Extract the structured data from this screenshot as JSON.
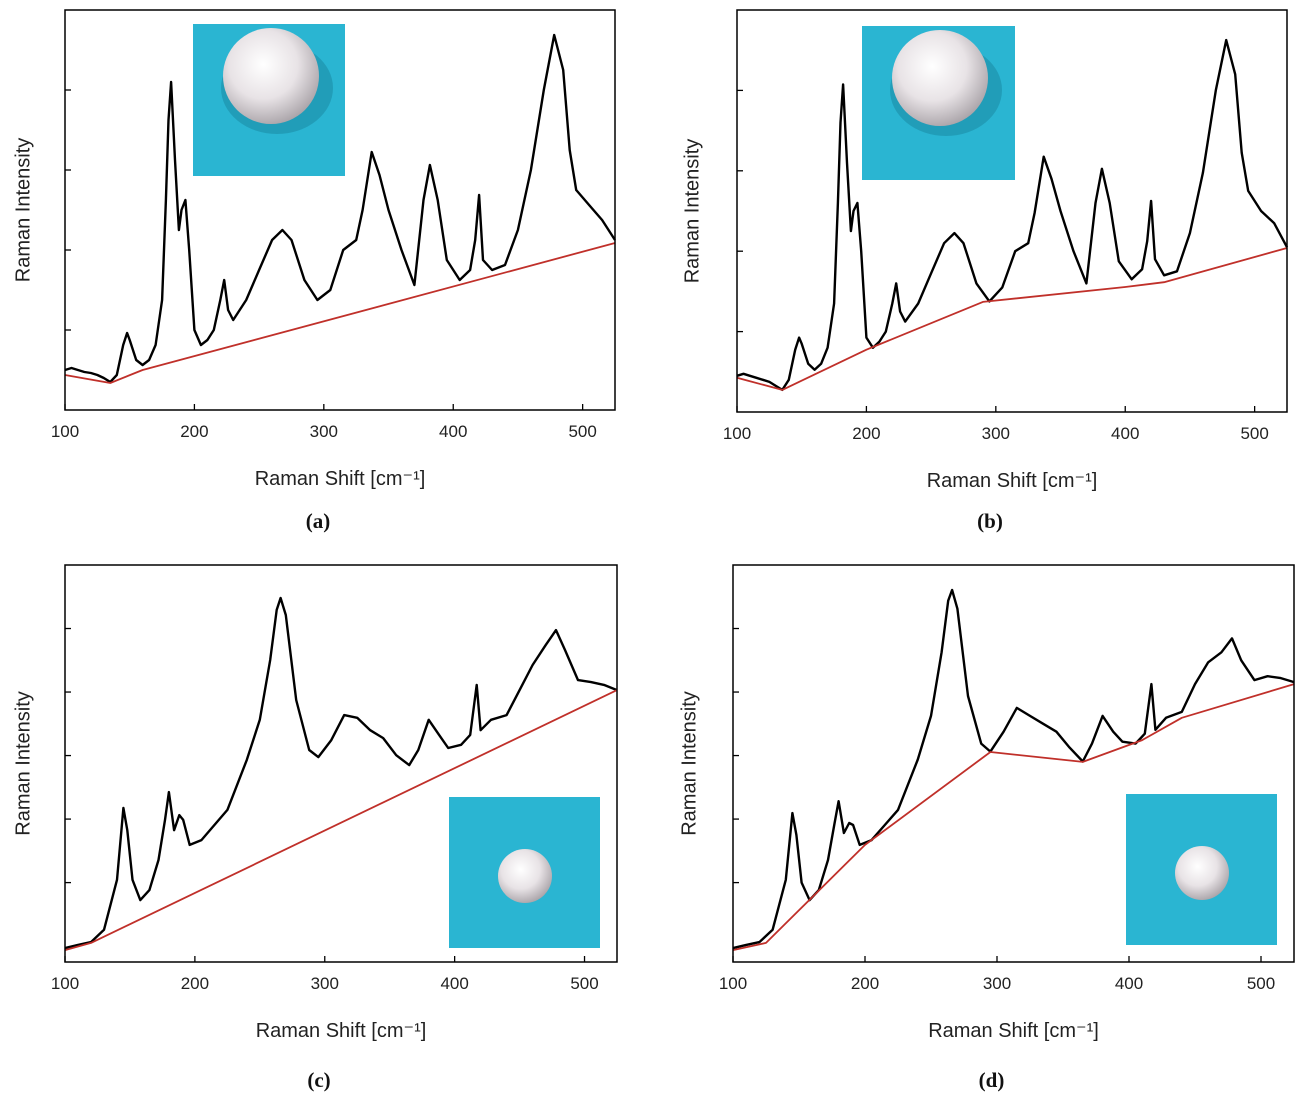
{
  "chart_data": [
    {
      "type": "line",
      "caption": "(a)",
      "xlabel": "Raman Shift [cm⁻¹]",
      "ylabel": "Raman Intensity",
      "xlim": [
        100,
        525
      ],
      "xticks": [
        100,
        200,
        300,
        400,
        500
      ],
      "ylim": [
        0,
        100
      ],
      "yticks": [
        20,
        40,
        60,
        80
      ],
      "series": [
        {
          "color": "#000000",
          "x": [
            100,
            105,
            110,
            115,
            120,
            125,
            130,
            135,
            140,
            145,
            148,
            150,
            155,
            160,
            165,
            170,
            175,
            178,
            180,
            182,
            185,
            188,
            190,
            193,
            196,
            200,
            205,
            210,
            215,
            220,
            223,
            226,
            230,
            240,
            250,
            260,
            268,
            275,
            285,
            295,
            305,
            315,
            325,
            330,
            337,
            343,
            350,
            360,
            370,
            377,
            382,
            388,
            395,
            405,
            413,
            417,
            420,
            423,
            430,
            440,
            450,
            460,
            470,
            478,
            485,
            490,
            495,
            505,
            515,
            525
          ],
          "values": [
            10,
            10.5,
            10,
            9.5,
            9.25,
            8.75,
            8,
            7,
            8.75,
            16.25,
            19.25,
            17.5,
            12.5,
            11.25,
            12.5,
            16.25,
            27.5,
            52.5,
            72.5,
            82,
            62.5,
            45,
            50,
            52.5,
            40,
            20,
            16.25,
            17.5,
            20,
            27.5,
            32.5,
            25,
            22.5,
            27.5,
            35,
            42.5,
            45,
            42.5,
            32.5,
            27.5,
            30,
            40,
            42.5,
            50,
            64.5,
            58.75,
            50,
            40,
            31.25,
            52.5,
            61.25,
            52.5,
            37.5,
            32.5,
            35,
            42.5,
            53.75,
            37.5,
            35,
            36.25,
            45,
            60,
            80,
            93.75,
            85,
            65,
            55,
            51.25,
            47.5,
            42.5
          ]
        },
        {
          "color": "#c0302a",
          "x": [
            100,
            135,
            160,
            525
          ],
          "values": [
            8.75,
            6.75,
            10,
            41.75
          ]
        }
      ]
    },
    {
      "type": "line",
      "caption": "(b)",
      "xlabel": "Raman Shift [cm⁻¹]",
      "ylabel": "Raman Intensity",
      "xlim": [
        100,
        525
      ],
      "xticks": [
        100,
        200,
        300,
        400,
        500
      ],
      "ylim": [
        0,
        100
      ],
      "yticks": [
        20,
        40,
        60,
        80
      ],
      "series": [
        {
          "color": "#000000",
          "x": [
            100,
            105,
            110,
            115,
            120,
            125,
            130,
            135,
            140,
            145,
            148,
            150,
            155,
            160,
            165,
            170,
            175,
            178,
            180,
            182,
            185,
            188,
            190,
            193,
            196,
            200,
            205,
            210,
            215,
            220,
            223,
            226,
            230,
            240,
            250,
            260,
            268,
            275,
            285,
            295,
            305,
            315,
            325,
            330,
            337,
            343,
            350,
            360,
            370,
            377,
            382,
            388,
            395,
            405,
            413,
            417,
            420,
            423,
            430,
            440,
            450,
            460,
            470,
            478,
            485,
            490,
            495,
            505,
            515,
            525
          ],
          "values": [
            9,
            9.5,
            9,
            8.5,
            8,
            7.5,
            6.5,
            5.5,
            8,
            15.5,
            18.5,
            17,
            12,
            10.5,
            12,
            16,
            27,
            52,
            72,
            81.5,
            62,
            45,
            50,
            52,
            40,
            18.5,
            16,
            17.5,
            20,
            27,
            32,
            25,
            22.5,
            27,
            34.5,
            42,
            44.5,
            42,
            32,
            27.5,
            31,
            40,
            42,
            49.5,
            63.5,
            58,
            50,
            40,
            32,
            52,
            60.5,
            52,
            37.5,
            33,
            35.5,
            42.5,
            52.5,
            38,
            34,
            35,
            44.5,
            59.5,
            80,
            92.5,
            84,
            64.5,
            55,
            50,
            47,
            41
          ]
        },
        {
          "color": "#c0302a",
          "x": [
            100,
            135,
            200,
            290,
            400,
            430,
            525
          ],
          "values": [
            8.5,
            5.5,
            15.5,
            27.4,
            31.1,
            32.3,
            40.8
          ]
        }
      ]
    },
    {
      "type": "line",
      "caption": "(c)",
      "xlabel": "Raman Shift [cm⁻¹]",
      "ylabel": "Raman Intensity",
      "xlim": [
        100,
        525
      ],
      "xticks": [
        100,
        200,
        300,
        400,
        500
      ],
      "ylim": [
        0,
        100
      ],
      "yticks": [
        20,
        36,
        52,
        68,
        84
      ],
      "series": [
        {
          "color": "#000000",
          "x": [
            100,
            110,
            120,
            130,
            140,
            145,
            148,
            152,
            158,
            165,
            172,
            177,
            180,
            184,
            188,
            191,
            196,
            205,
            215,
            225,
            240,
            250,
            258,
            263,
            266,
            270,
            278,
            288,
            295,
            305,
            315,
            325,
            335,
            345,
            355,
            365,
            372,
            380,
            388,
            395,
            405,
            412,
            417,
            420,
            428,
            440,
            450,
            460,
            470,
            478,
            485,
            495,
            505,
            515,
            525
          ],
          "values": [
            3.5,
            4.3,
            5,
            8.1,
            20.7,
            38.8,
            33.2,
            20.7,
            15.6,
            18.1,
            25.7,
            35.8,
            42.8,
            33.2,
            37,
            35.8,
            29.5,
            30.7,
            34.5,
            38.3,
            50.9,
            61,
            76.1,
            88.7,
            91.7,
            87.4,
            66,
            53.4,
            51.6,
            55.9,
            62.2,
            61.5,
            58.4,
            56.4,
            52.1,
            49.6,
            53.4,
            61,
            57.2,
            53.9,
            54.7,
            57.2,
            69.8,
            58.4,
            61,
            62.2,
            68.5,
            74.8,
            79.8,
            83.6,
            78.6,
            71,
            70.5,
            69.8,
            68.5
          ]
        },
        {
          "color": "#c0302a",
          "x": [
            100,
            120,
            525
          ],
          "values": [
            3,
            4.8,
            68.5
          ]
        }
      ]
    },
    {
      "type": "line",
      "caption": "(d)",
      "xlabel": "Raman Shift [cm⁻¹]",
      "ylabel": "Raman Intensity",
      "xlim": [
        100,
        525
      ],
      "xticks": [
        100,
        200,
        300,
        400,
        500
      ],
      "ylim": [
        0,
        100
      ],
      "yticks": [
        20,
        36,
        52,
        68,
        84
      ],
      "series": [
        {
          "color": "#000000",
          "x": [
            100,
            110,
            120,
            130,
            140,
            145,
            148,
            152,
            158,
            165,
            172,
            177,
            180,
            184,
            188,
            191,
            196,
            205,
            215,
            225,
            240,
            250,
            258,
            263,
            266,
            270,
            278,
            288,
            295,
            305,
            315,
            325,
            335,
            345,
            355,
            365,
            372,
            380,
            388,
            395,
            405,
            412,
            417,
            420,
            428,
            440,
            450,
            460,
            470,
            478,
            485,
            495,
            505,
            515,
            525
          ],
          "values": [
            3.5,
            4.3,
            5,
            8.1,
            20.7,
            37.5,
            32,
            20,
            15.6,
            18.1,
            25.7,
            35,
            40.5,
            32.5,
            35,
            34.5,
            29.5,
            30.7,
            34.5,
            38.3,
            51,
            62,
            78,
            91,
            93.7,
            89,
            67,
            55,
            53,
            58,
            64,
            62,
            60,
            58,
            54,
            50.5,
            55,
            62,
            58,
            55.5,
            55,
            57.5,
            70,
            58.5,
            61.5,
            63,
            70,
            75.5,
            78,
            81.5,
            76,
            71,
            72,
            71.5,
            70.5
          ]
        },
        {
          "color": "#c0302a",
          "x": [
            100,
            125,
            200,
            295,
            365,
            410,
            440,
            525
          ],
          "values": [
            3,
            4.8,
            29.5,
            52.9,
            50.4,
            55.9,
            61.5,
            70
          ]
        }
      ]
    }
  ]
}
